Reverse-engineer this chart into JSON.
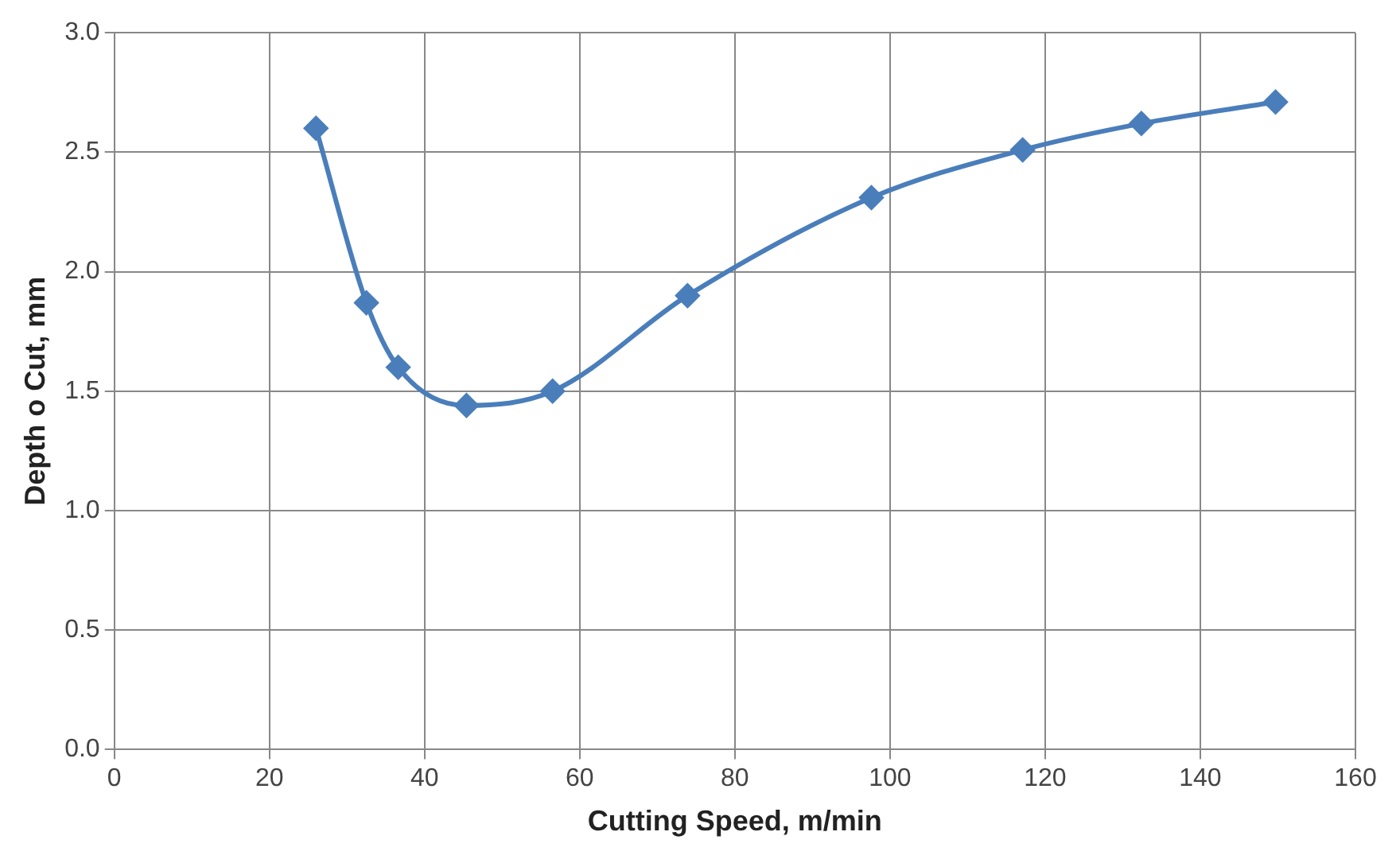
{
  "chart_data": {
    "type": "line",
    "xlabel": "Cutting Speed, m/min",
    "ylabel": "Depth o Cut, mm",
    "x": [
      26,
      32.5,
      36.6,
      45.4,
      56.5,
      73.9,
      97.6,
      117.1,
      132.4,
      149.7
    ],
    "series": [
      {
        "color": "#4a7ebb",
        "values": [
          2.6,
          1.87,
          1.6,
          1.44,
          1.5,
          1.9,
          2.31,
          2.51,
          2.62,
          2.71
        ]
      }
    ],
    "xlim": [
      0,
      160
    ],
    "xticks": [
      0,
      20,
      40,
      60,
      80,
      100,
      120,
      140,
      160
    ],
    "ylim": [
      0,
      3
    ],
    "yticks": [
      {
        "value": 0,
        "label": "0.0"
      },
      {
        "value": 0.5,
        "label": "0.5"
      },
      {
        "value": 1,
        "label": "1.0"
      },
      {
        "value": 1.5,
        "label": "1.5"
      },
      {
        "value": 2,
        "label": "2.0"
      },
      {
        "value": 2.5,
        "label": "2.5"
      },
      {
        "value": 3,
        "label": "3.0"
      }
    ],
    "grid": true,
    "legend": false,
    "marker": "diamond",
    "line_style": "solid"
  }
}
